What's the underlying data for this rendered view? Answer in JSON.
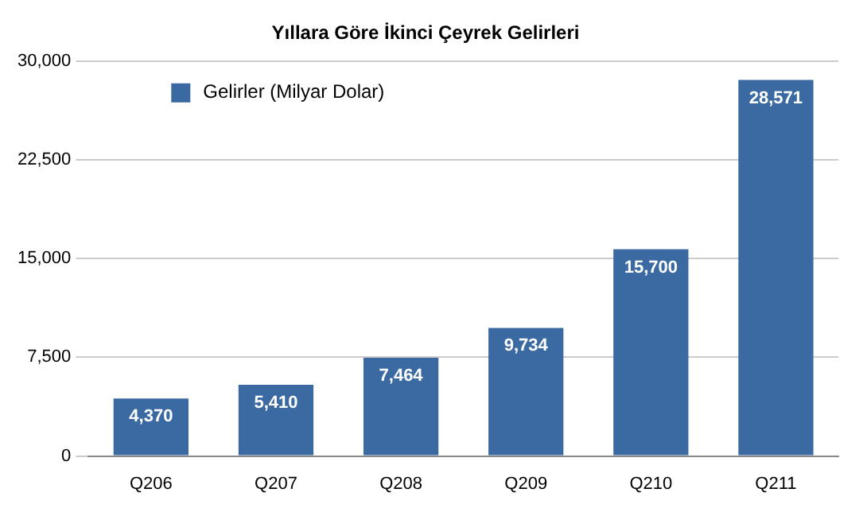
{
  "chart_data": {
    "type": "bar",
    "title": "Yıllara Göre İkinci Çeyrek Gelirleri",
    "categories": [
      "Q206",
      "Q207",
      "Q208",
      "Q209",
      "Q210",
      "Q211"
    ],
    "series": [
      {
        "name": "Gelirler (Milyar Dolar)",
        "color": "#3a6aa1",
        "values": [
          4370,
          5410,
          7464,
          9734,
          15700,
          28571
        ],
        "value_labels": [
          "4,370",
          "5,410",
          "7,464",
          "9,734",
          "15,700",
          "28,571"
        ]
      }
    ],
    "ylim": [
      0,
      30000
    ],
    "yticks": [
      {
        "value": 0,
        "label": "0"
      },
      {
        "value": 7500,
        "label": "7,500"
      },
      {
        "value": 15000,
        "label": "15,000"
      },
      {
        "value": 22500,
        "label": "22,500"
      },
      {
        "value": 30000,
        "label": "30,000"
      }
    ],
    "grid": "y",
    "legend": "top left"
  }
}
